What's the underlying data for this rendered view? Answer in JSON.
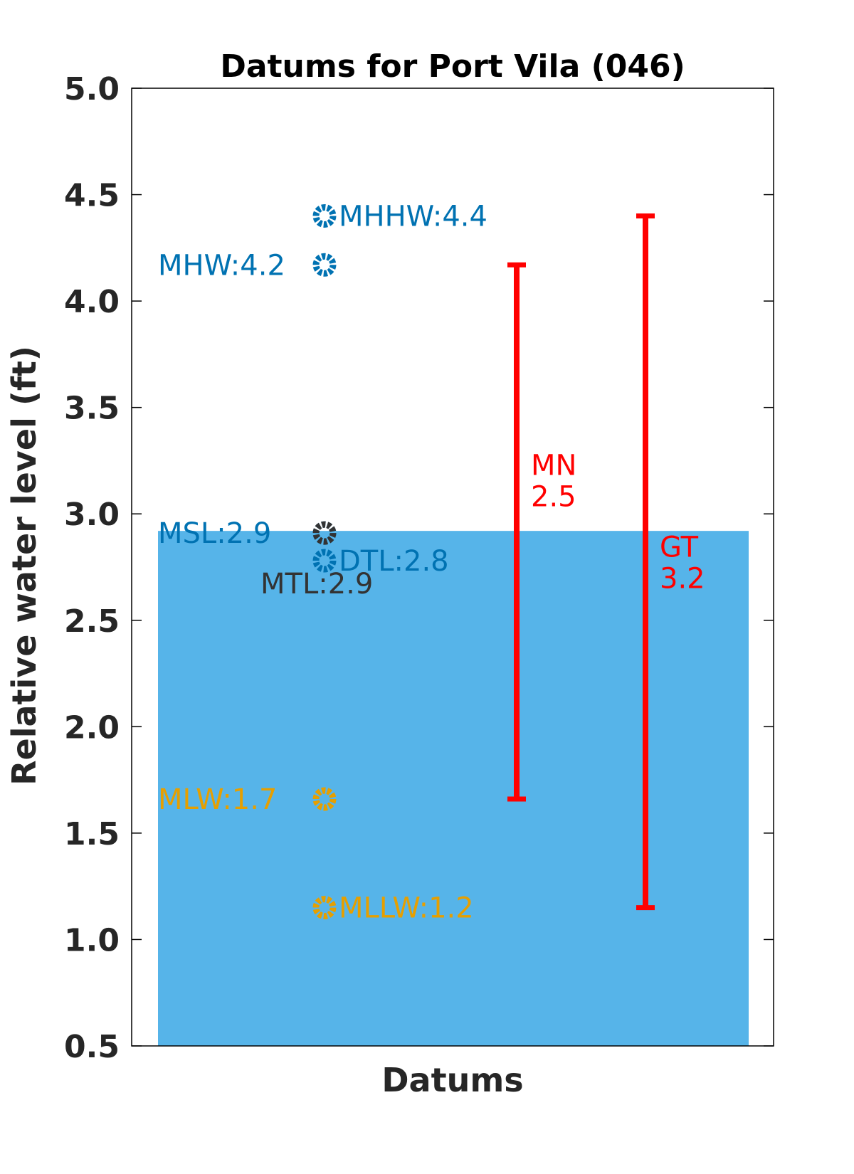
{
  "chart_data": {
    "type": "scatter",
    "title": "Datums for Port Vila (046)",
    "xlabel": "Datums",
    "ylabel": "Relative water level (ft)",
    "ylim": [
      0.5,
      5.0
    ],
    "yticks": [
      "0.5",
      "1.0",
      "1.5",
      "2.0",
      "2.5",
      "3.0",
      "3.5",
      "4.0",
      "4.5",
      "5.0"
    ],
    "grid": false,
    "fill_to": 2.92,
    "fill_color": "#56B4E9",
    "points": [
      {
        "label": "MHHW:4.4",
        "value": 4.4,
        "color": "#0072B2",
        "side": "right"
      },
      {
        "label": "MHW:4.2",
        "value": 4.17,
        "color": "#0072B2",
        "side": "left"
      },
      {
        "label": "MSL:2.9",
        "value": 2.91,
        "color": "#0072B2",
        "side": "left"
      },
      {
        "label": "MTL:2.9",
        "value": 2.91,
        "color": "#333333",
        "side": "below"
      },
      {
        "label": "DTL:2.8",
        "value": 2.78,
        "color": "#0072B2",
        "side": "right"
      },
      {
        "label": "MLW:1.7",
        "value": 1.66,
        "color": "#E69F00",
        "side": "left"
      },
      {
        "label": "MLLW:1.2",
        "value": 1.15,
        "color": "#E69F00",
        "side": "right"
      }
    ],
    "ranges": [
      {
        "name": "MN",
        "value_label": "2.5",
        "low": 1.66,
        "high": 4.17,
        "color": "#FF0000"
      },
      {
        "name": "GT",
        "value_label": "3.2",
        "low": 1.15,
        "high": 4.4,
        "color": "#FF0000"
      }
    ]
  }
}
